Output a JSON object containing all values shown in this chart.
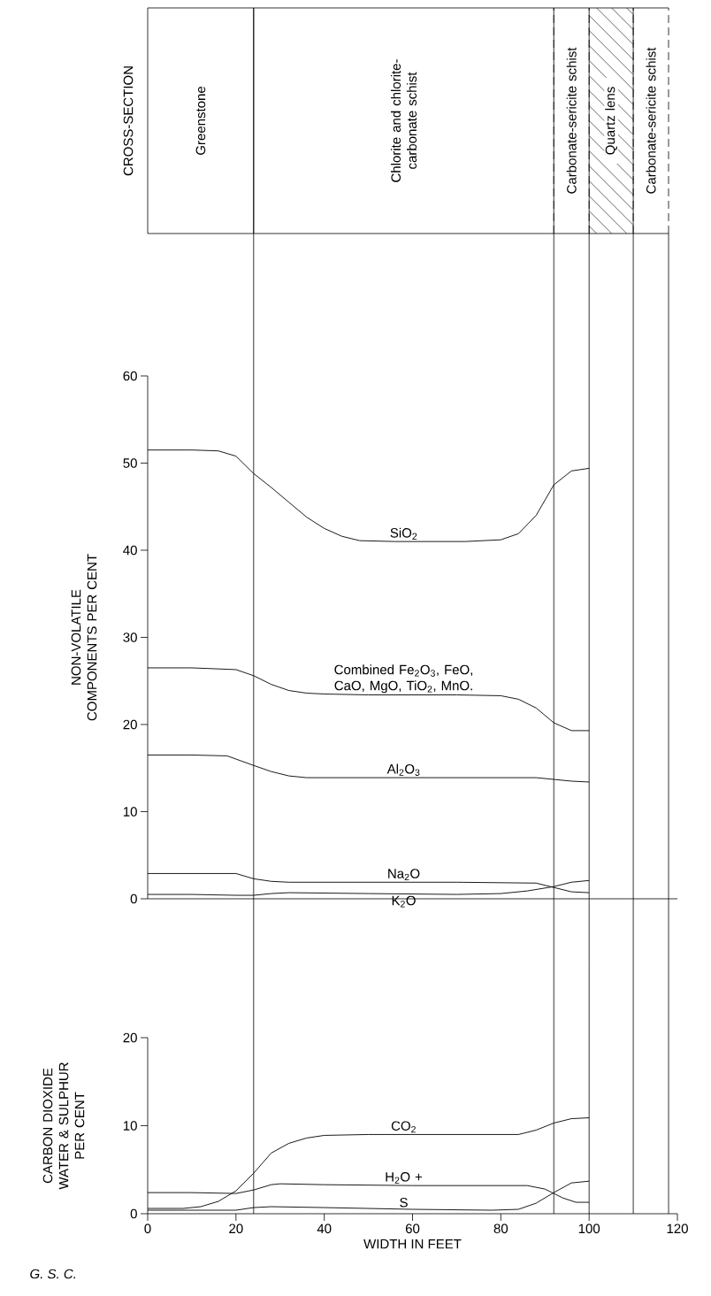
{
  "chart_data": [
    {
      "type": "other",
      "title": "CROSS-SECTION",
      "annotations": [
        "Greenstone",
        "Chlorite and chlorite-carbonate schist",
        "Carbonate-sericite schist",
        "Quartz lens",
        "Carbonate-sericite schist"
      ]
    },
    {
      "type": "line",
      "ylabel": "NON-VOLATILE COMPONENTS PER CENT",
      "xlim": [
        0,
        120
      ],
      "ylim": [
        0,
        60
      ],
      "yticks": [
        0,
        10,
        20,
        30,
        40,
        50,
        60
      ],
      "tick_labels": "y",
      "ref_lines": [
        {
          "axis": "x",
          "value": 24
        },
        {
          "axis": "x",
          "value": 92
        },
        {
          "axis": "x",
          "value": 100
        },
        {
          "axis": "x",
          "value": 110
        },
        {
          "axis": "x",
          "value": 118
        }
      ],
      "series": [
        {
          "name": "SiO$_{2}$",
          "color": "#000000",
          "x": [
            0,
            10,
            16,
            20,
            24,
            28,
            32,
            36,
            40,
            44,
            48,
            56,
            64,
            72,
            80,
            84,
            88,
            92,
            96,
            100
          ],
          "values": [
            51.5,
            51.5,
            51.4,
            50.8,
            48.8,
            47.2,
            45.5,
            43.8,
            42.5,
            41.6,
            41.1,
            41.0,
            41.0,
            41.0,
            41.2,
            41.9,
            44.0,
            47.5,
            49.1,
            49.4
          ]
        },
        {
          "name": "Combined Fe$_{2}$O$_{3}$, FeO, CaO, MgO, TiO$_{2}$, MnO.",
          "color": "#000000",
          "x": [
            0,
            10,
            20,
            24,
            28,
            32,
            36,
            40,
            50,
            60,
            70,
            80,
            84,
            88,
            92,
            96,
            100
          ],
          "values": [
            26.5,
            26.5,
            26.3,
            25.6,
            24.6,
            23.9,
            23.6,
            23.5,
            23.4,
            23.4,
            23.4,
            23.3,
            22.9,
            21.9,
            20.2,
            19.3,
            19.3
          ]
        },
        {
          "name": "Al$_{2}$O$_{3}$",
          "color": "#000000",
          "x": [
            0,
            10,
            18,
            24,
            28,
            32,
            36,
            50,
            70,
            88,
            92,
            96,
            100
          ],
          "values": [
            16.5,
            16.5,
            16.4,
            15.3,
            14.6,
            14.1,
            13.9,
            13.9,
            13.9,
            13.9,
            13.7,
            13.5,
            13.4
          ]
        },
        {
          "name": "Na$_{2}$O",
          "color": "#000000",
          "x": [
            0,
            10,
            20,
            24,
            28,
            32,
            50,
            70,
            88,
            92,
            96,
            100
          ],
          "values": [
            2.9,
            2.9,
            2.9,
            2.3,
            2.0,
            1.9,
            1.9,
            1.9,
            1.8,
            1.3,
            0.8,
            0.7
          ]
        },
        {
          "name": "K$_{2}$O",
          "color": "#000000",
          "x": [
            0,
            10,
            20,
            24,
            28,
            32,
            50,
            70,
            80,
            86,
            92,
            96,
            100
          ],
          "values": [
            0.5,
            0.5,
            0.4,
            0.4,
            0.6,
            0.7,
            0.6,
            0.5,
            0.6,
            0.9,
            1.4,
            1.9,
            2.1
          ]
        }
      ]
    },
    {
      "type": "line",
      "xlabel": "WIDTH IN FEET",
      "ylabel": "CARBON DIOXIDE WATER & SULPHUR PER CENT",
      "xlim": [
        0,
        120
      ],
      "xticks": [
        0,
        20,
        40,
        60,
        80,
        100,
        120
      ],
      "ylim": [
        0,
        20
      ],
      "yticks": [
        0,
        10,
        20
      ],
      "annotations": [
        "G. S. C."
      ],
      "ref_lines": [
        {
          "axis": "x",
          "value": 24
        },
        {
          "axis": "x",
          "value": 92
        },
        {
          "axis": "x",
          "value": 100
        },
        {
          "axis": "x",
          "value": 110
        },
        {
          "axis": "x",
          "value": 118
        }
      ],
      "series": [
        {
          "name": "CO$_{2}$",
          "color": "#000000",
          "x": [
            0,
            8,
            12,
            16,
            20,
            24,
            28,
            32,
            36,
            40,
            50,
            60,
            70,
            80,
            84,
            88,
            92,
            96,
            100
          ],
          "values": [
            0.6,
            0.6,
            0.8,
            1.4,
            2.6,
            4.6,
            6.9,
            8.0,
            8.6,
            8.9,
            9.0,
            9.0,
            9.0,
            9.0,
            9.0,
            9.5,
            10.3,
            10.8,
            10.9
          ]
        },
        {
          "name": "H$_{2}$O +",
          "color": "#000000",
          "x": [
            0,
            10,
            20,
            24,
            28,
            30,
            40,
            60,
            80,
            86,
            90,
            94,
            97,
            100
          ],
          "values": [
            2.4,
            2.4,
            2.3,
            2.7,
            3.3,
            3.4,
            3.3,
            3.2,
            3.2,
            3.2,
            2.8,
            1.8,
            1.3,
            1.3
          ]
        },
        {
          "name": "S",
          "color": "#000000",
          "x": [
            0,
            10,
            20,
            24,
            28,
            40,
            60,
            78,
            84,
            88,
            92,
            96,
            100
          ],
          "values": [
            0.4,
            0.4,
            0.4,
            0.7,
            0.8,
            0.7,
            0.5,
            0.4,
            0.5,
            1.2,
            2.4,
            3.5,
            3.7
          ]
        }
      ]
    }
  ]
}
